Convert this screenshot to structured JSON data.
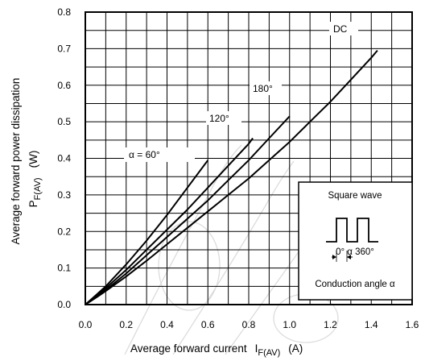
{
  "chart_data": {
    "type": "line",
    "ylabel_line1": "Average forward power dissipation",
    "ylabel_sym": "P",
    "ylabel_sub": "F(AV)",
    "ylabel_unit": "(W)",
    "xlabel_text": "Average forward current",
    "xlabel_sym": "I",
    "xlabel_sub": "F(AV)",
    "xlabel_unit": "(A)",
    "xlim": [
      0,
      1.6
    ],
    "ylim": [
      0,
      0.8
    ],
    "x_ticks": [
      "0.0",
      "0.2",
      "0.4",
      "0.6",
      "0.8",
      "1.0",
      "1.2",
      "1.4",
      "1.6"
    ],
    "y_ticks": [
      "0.0",
      "0.1",
      "0.2",
      "0.3",
      "0.4",
      "0.5",
      "0.6",
      "0.7",
      "0.8"
    ],
    "grid": true,
    "series": [
      {
        "name": "α = 60°",
        "x": [
          0,
          0.05,
          0.1,
          0.2,
          0.3,
          0.4,
          0.5,
          0.6
        ],
        "y": [
          0,
          0.025,
          0.05,
          0.11,
          0.175,
          0.245,
          0.32,
          0.395
        ]
      },
      {
        "name": "120°",
        "x": [
          0,
          0.05,
          0.1,
          0.2,
          0.3,
          0.4,
          0.5,
          0.6,
          0.7,
          0.8,
          0.82
        ],
        "y": [
          0,
          0.022,
          0.045,
          0.095,
          0.15,
          0.205,
          0.26,
          0.32,
          0.38,
          0.44,
          0.455
        ]
      },
      {
        "name": "180°",
        "x": [
          0,
          0.05,
          0.1,
          0.2,
          0.3,
          0.4,
          0.5,
          0.6,
          0.7,
          0.8,
          0.9,
          1.0
        ],
        "y": [
          0,
          0.02,
          0.04,
          0.085,
          0.135,
          0.185,
          0.235,
          0.285,
          0.34,
          0.395,
          0.455,
          0.515
        ]
      },
      {
        "name": "DC",
        "x": [
          0,
          0.05,
          0.1,
          0.2,
          0.3,
          0.4,
          0.5,
          0.6,
          0.7,
          0.8,
          0.9,
          1.0,
          1.1,
          1.2,
          1.3,
          1.4,
          1.43
        ],
        "y": [
          0,
          0.018,
          0.037,
          0.077,
          0.12,
          0.165,
          0.21,
          0.255,
          0.3,
          0.345,
          0.395,
          0.445,
          0.5,
          0.555,
          0.615,
          0.675,
          0.695
        ]
      }
    ],
    "inset": {
      "title": "Square wave",
      "angle_label": "0° α 360°",
      "caption": "Conduction angle α"
    }
  }
}
